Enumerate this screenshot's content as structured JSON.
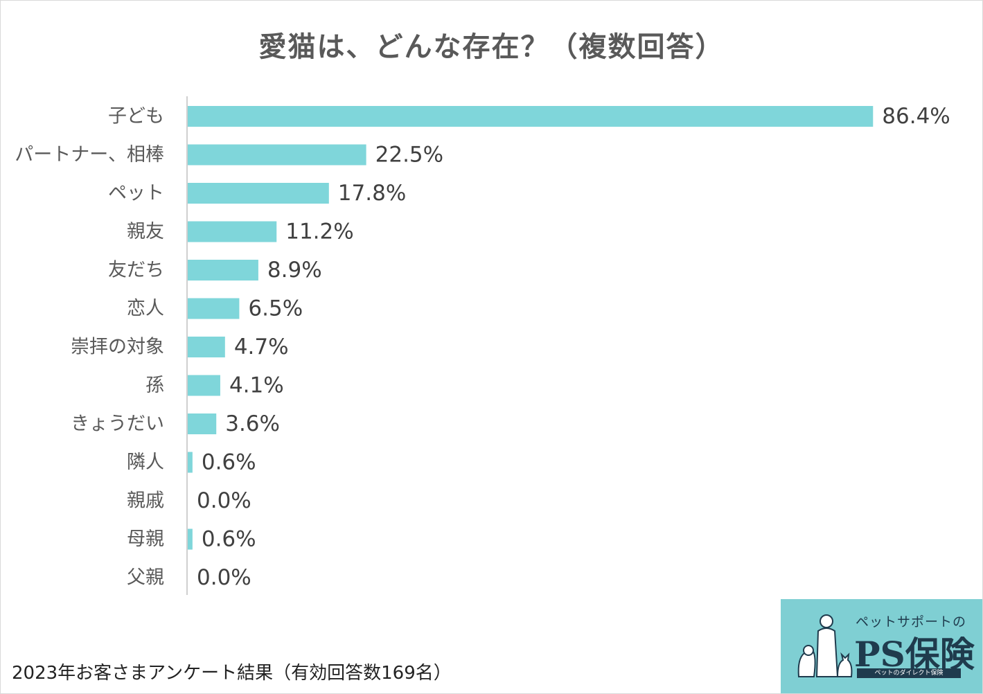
{
  "chart_data": {
    "type": "bar",
    "orientation": "horizontal",
    "title": "愛猫は、どんな存在？（複数回答）",
    "categories": [
      "子ども",
      "パートナー、相棒",
      "ペット",
      "親友",
      "友だち",
      "恋人",
      "崇拝の対象",
      "孫",
      "きょうだい",
      "隣人",
      "親戚",
      "母親",
      "父親"
    ],
    "values": [
      86.4,
      22.5,
      17.8,
      11.2,
      8.9,
      6.5,
      4.7,
      4.1,
      3.6,
      0.6,
      0.0,
      0.6,
      0.0
    ],
    "value_labels": [
      "86.4%",
      "22.5%",
      "17.8%",
      "11.2%",
      "8.9%",
      "6.5%",
      "4.7%",
      "4.1%",
      "3.6%",
      "0.6%",
      "0.0%",
      "0.6%",
      "0.0%"
    ],
    "unit": "%",
    "xlim": [
      0,
      100
    ],
    "xlabel": "",
    "ylabel": "",
    "grid": false,
    "bar_color": "#7fd6da"
  },
  "footnote": "2023年お客さまアンケート結果（有効回答数169名）",
  "logo": {
    "tagline": "ペットサポートの",
    "name": "PS保険",
    "subtitle": "ペットのダイレクト保険",
    "background_color": "#7fcfd3",
    "text_color": "#1f3b4d"
  }
}
